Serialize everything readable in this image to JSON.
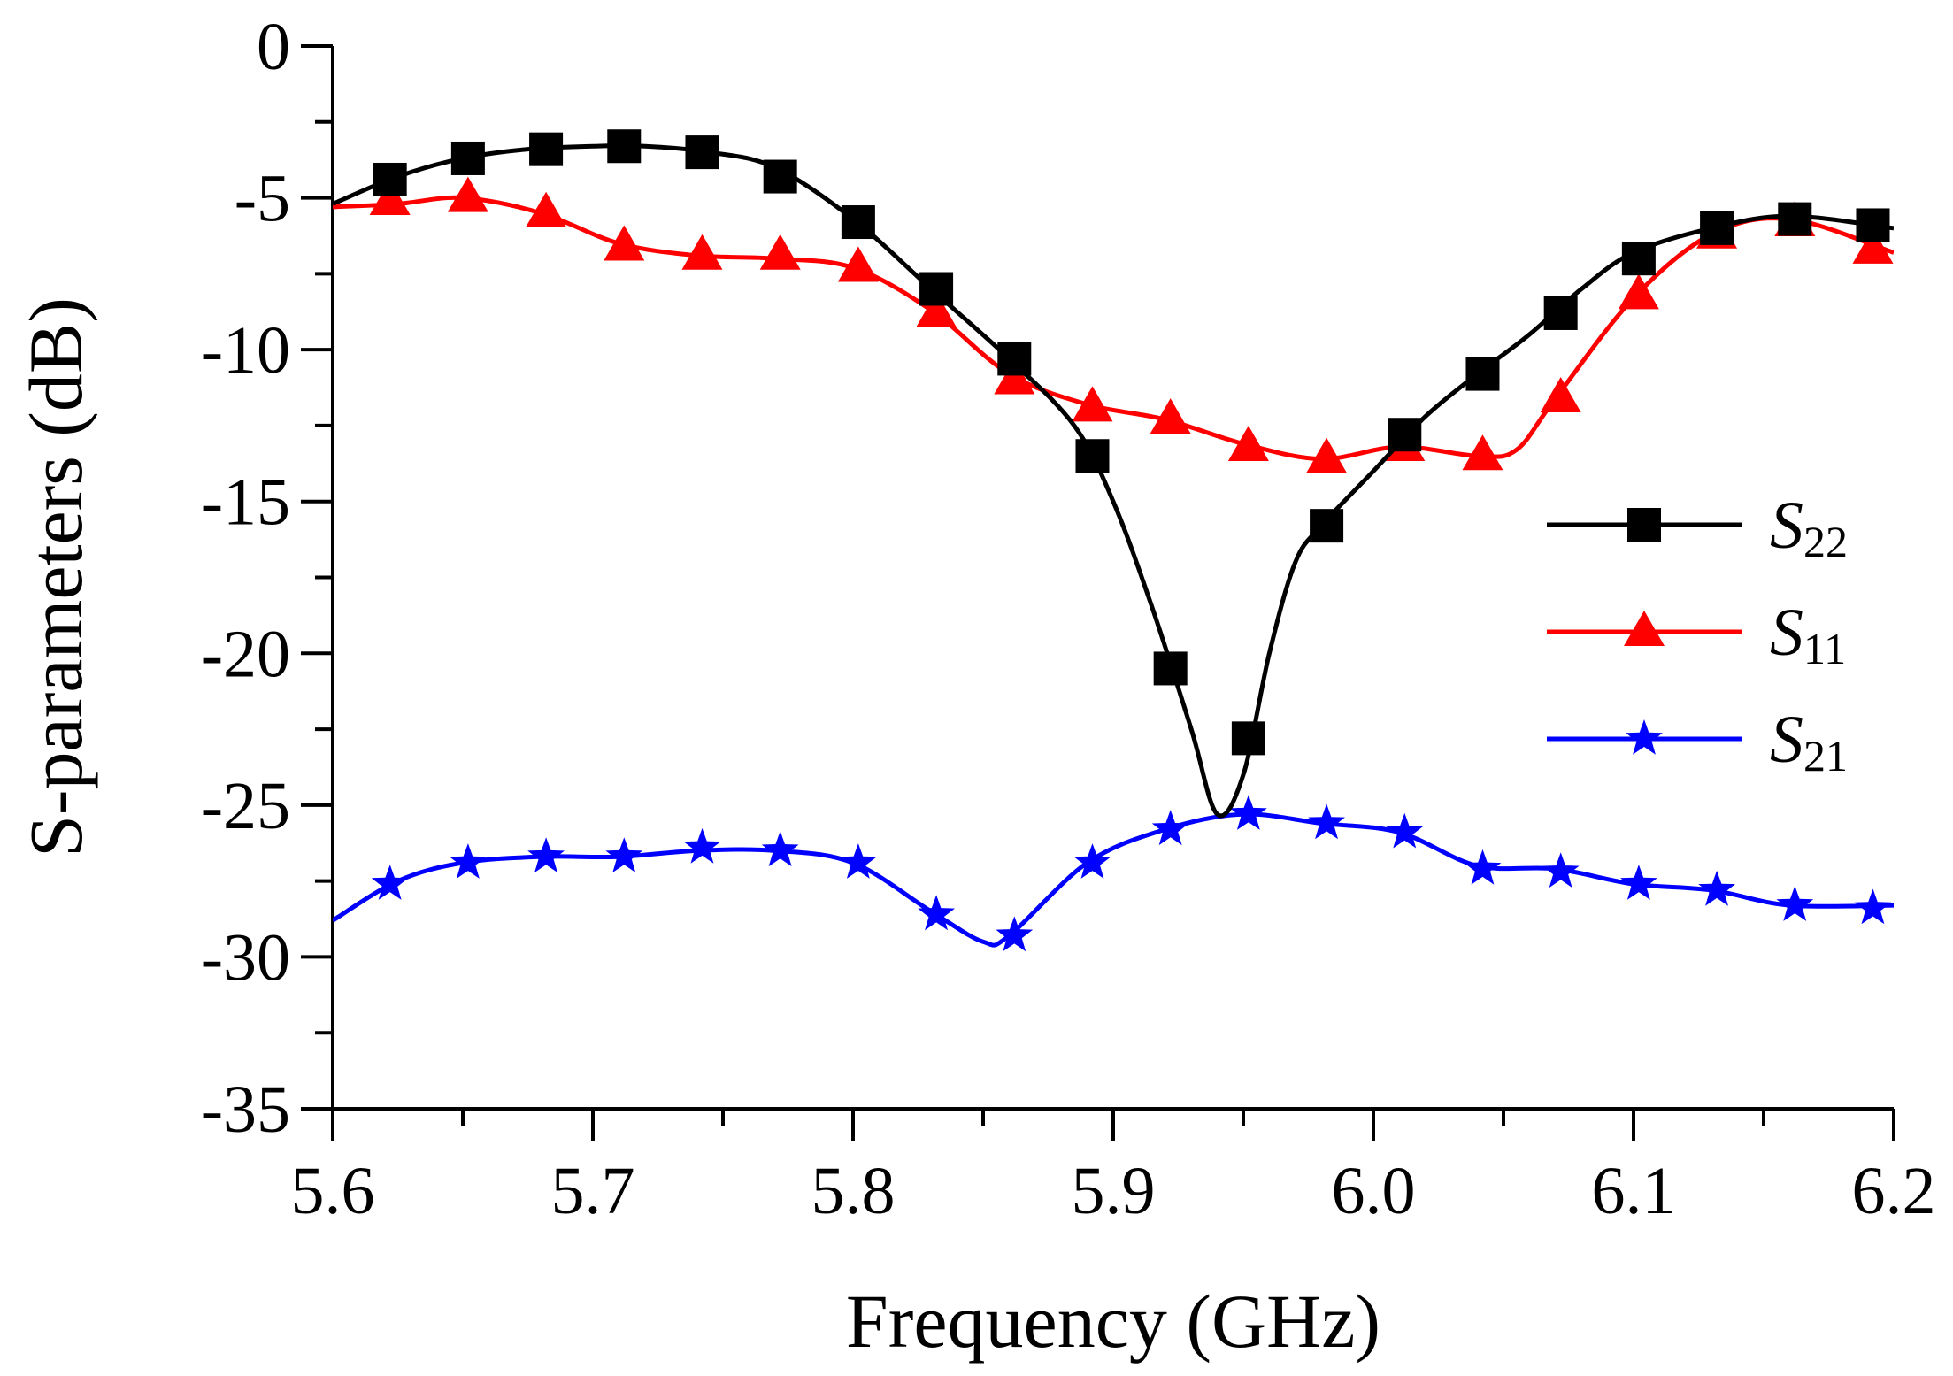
{
  "chart_data": {
    "type": "line",
    "xlabel": "Frequency (GHz)",
    "ylabel": "S-parameters (dB)",
    "xlim": [
      5.6,
      6.2
    ],
    "ylim": [
      -35,
      0
    ],
    "xticks": [
      "5.6",
      "5.7",
      "5.8",
      "5.9",
      "6.0",
      "6.1",
      "6.2"
    ],
    "yticks": [
      "0",
      "-5",
      "-10",
      "-15",
      "-20",
      "-25",
      "-30",
      "-35"
    ],
    "legend_position": "right",
    "series": [
      {
        "name": "S22",
        "name_main": "S",
        "name_sub": "22",
        "color": "#000000",
        "marker": "square",
        "curve": [
          [
            5.6,
            -5.2
          ],
          [
            5.625,
            -4.3
          ],
          [
            5.65,
            -3.7
          ],
          [
            5.675,
            -3.4
          ],
          [
            5.7,
            -3.3
          ],
          [
            5.72,
            -3.3
          ],
          [
            5.745,
            -3.5
          ],
          [
            5.77,
            -4.0
          ],
          [
            5.8,
            -5.7
          ],
          [
            5.83,
            -8.0
          ],
          [
            5.86,
            -10.3
          ],
          [
            5.885,
            -12.5
          ],
          [
            5.9,
            -15.0
          ],
          [
            5.915,
            -18.5
          ],
          [
            5.93,
            -22.5
          ],
          [
            5.94,
            -25.3
          ],
          [
            5.95,
            -24.0
          ],
          [
            5.96,
            -20.0
          ],
          [
            5.97,
            -17.0
          ],
          [
            5.98,
            -15.8
          ],
          [
            6.0,
            -14.0
          ],
          [
            6.02,
            -12.2
          ],
          [
            6.04,
            -10.8
          ],
          [
            6.06,
            -9.5
          ],
          [
            6.08,
            -8.0
          ],
          [
            6.1,
            -6.8
          ],
          [
            6.13,
            -6.0
          ],
          [
            6.16,
            -5.6
          ],
          [
            6.2,
            -6.0
          ]
        ],
        "markers": [
          [
            5.622,
            -4.4
          ],
          [
            5.652,
            -3.7
          ],
          [
            5.682,
            -3.4
          ],
          [
            5.712,
            -3.3
          ],
          [
            5.742,
            -3.5
          ],
          [
            5.772,
            -4.3
          ],
          [
            5.802,
            -5.8
          ],
          [
            5.832,
            -8.0
          ],
          [
            5.862,
            -10.3
          ],
          [
            5.892,
            -13.5
          ],
          [
            5.922,
            -20.5
          ],
          [
            5.952,
            -22.8
          ],
          [
            5.982,
            -15.8
          ],
          [
            6.012,
            -12.8
          ],
          [
            6.042,
            -10.8
          ],
          [
            6.072,
            -8.8
          ],
          [
            6.102,
            -7.0
          ],
          [
            6.132,
            -6.0
          ],
          [
            6.162,
            -5.7
          ],
          [
            6.192,
            -5.9
          ]
        ]
      },
      {
        "name": "S11",
        "name_main": "S",
        "name_sub": "11",
        "color": "#ff0000",
        "marker": "triangle",
        "curve": [
          [
            5.6,
            -5.3
          ],
          [
            5.625,
            -5.2
          ],
          [
            5.65,
            -5.0
          ],
          [
            5.68,
            -5.5
          ],
          [
            5.71,
            -6.5
          ],
          [
            5.74,
            -6.9
          ],
          [
            5.77,
            -7.0
          ],
          [
            5.8,
            -7.3
          ],
          [
            5.83,
            -8.7
          ],
          [
            5.86,
            -10.8
          ],
          [
            5.89,
            -11.8
          ],
          [
            5.92,
            -12.3
          ],
          [
            5.95,
            -13.1
          ],
          [
            5.98,
            -13.6
          ],
          [
            6.01,
            -13.2
          ],
          [
            6.04,
            -13.5
          ],
          [
            6.055,
            -13.3
          ],
          [
            6.07,
            -11.6
          ],
          [
            6.1,
            -8.3
          ],
          [
            6.13,
            -6.2
          ],
          [
            6.16,
            -5.7
          ],
          [
            6.2,
            -6.8
          ]
        ],
        "markers": [
          [
            5.622,
            -5.1
          ],
          [
            5.652,
            -5.0
          ],
          [
            5.682,
            -5.5
          ],
          [
            5.712,
            -6.6
          ],
          [
            5.742,
            -6.9
          ],
          [
            5.772,
            -6.9
          ],
          [
            5.802,
            -7.3
          ],
          [
            5.832,
            -8.8
          ],
          [
            5.862,
            -11.0
          ],
          [
            5.892,
            -11.9
          ],
          [
            5.922,
            -12.3
          ],
          [
            5.952,
            -13.2
          ],
          [
            5.982,
            -13.6
          ],
          [
            6.012,
            -13.2
          ],
          [
            6.042,
            -13.5
          ],
          [
            6.072,
            -11.6
          ],
          [
            6.102,
            -8.2
          ],
          [
            6.132,
            -6.2
          ],
          [
            6.162,
            -5.8
          ],
          [
            6.192,
            -6.7
          ]
        ]
      },
      {
        "name": "S21",
        "name_main": "S",
        "name_sub": "21",
        "color": "#0000ff",
        "marker": "star",
        "curve": [
          [
            5.6,
            -28.8
          ],
          [
            5.625,
            -27.5
          ],
          [
            5.65,
            -26.9
          ],
          [
            5.68,
            -26.7
          ],
          [
            5.71,
            -26.7
          ],
          [
            5.74,
            -26.5
          ],
          [
            5.77,
            -26.5
          ],
          [
            5.8,
            -26.9
          ],
          [
            5.83,
            -28.5
          ],
          [
            5.85,
            -29.5
          ],
          [
            5.86,
            -29.3
          ],
          [
            5.89,
            -26.9
          ],
          [
            5.92,
            -25.8
          ],
          [
            5.95,
            -25.3
          ],
          [
            5.98,
            -25.6
          ],
          [
            6.01,
            -25.9
          ],
          [
            6.04,
            -27.0
          ],
          [
            6.07,
            -27.1
          ],
          [
            6.1,
            -27.6
          ],
          [
            6.13,
            -27.8
          ],
          [
            6.16,
            -28.3
          ],
          [
            6.2,
            -28.3
          ]
        ],
        "markers": [
          [
            5.622,
            -27.6
          ],
          [
            5.652,
            -26.9
          ],
          [
            5.682,
            -26.7
          ],
          [
            5.712,
            -26.7
          ],
          [
            5.742,
            -26.4
          ],
          [
            5.772,
            -26.5
          ],
          [
            5.802,
            -26.9
          ],
          [
            5.832,
            -28.6
          ],
          [
            5.862,
            -29.3
          ],
          [
            5.892,
            -26.9
          ],
          [
            5.922,
            -25.8
          ],
          [
            5.952,
            -25.3
          ],
          [
            5.982,
            -25.6
          ],
          [
            6.012,
            -25.9
          ],
          [
            6.042,
            -27.1
          ],
          [
            6.072,
            -27.2
          ],
          [
            6.102,
            -27.6
          ],
          [
            6.132,
            -27.8
          ],
          [
            6.162,
            -28.3
          ],
          [
            6.192,
            -28.4
          ]
        ]
      }
    ]
  }
}
